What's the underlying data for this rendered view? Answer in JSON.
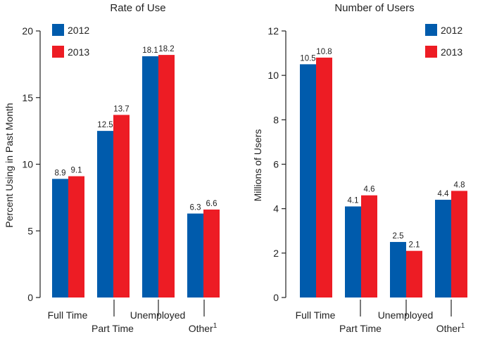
{
  "colors": {
    "s2012": "#005bac",
    "s2013": "#ed1c24"
  },
  "chart_data": [
    {
      "type": "bar",
      "title": "Rate of Use",
      "ylabel": "Percent Using in Past Month",
      "xlabel": "",
      "ylim": [
        0,
        20
      ],
      "yticks": [
        0,
        5,
        10,
        15,
        20
      ],
      "ytick_labels": [
        "0",
        "5",
        "10",
        "15",
        "20"
      ],
      "categories": [
        "Full Time",
        "Part Time",
        "Unemployed",
        "Other"
      ],
      "category_superscripts": [
        "",
        "",
        "",
        "1"
      ],
      "series": [
        {
          "name": "2012",
          "values": [
            8.9,
            12.5,
            18.1,
            6.3
          ],
          "labels": [
            "8.9",
            "12.5",
            "18.1",
            "6.3"
          ]
        },
        {
          "name": "2013",
          "values": [
            9.1,
            13.7,
            18.2,
            6.6
          ],
          "labels": [
            "9.1",
            "13.7",
            "18.2",
            "6.6"
          ]
        }
      ],
      "legend": "top-left"
    },
    {
      "type": "bar",
      "title": "Number of Users",
      "ylabel": "Millions of Users",
      "xlabel": "",
      "ylim": [
        0,
        12
      ],
      "yticks": [
        0,
        2,
        4,
        6,
        8,
        10,
        12
      ],
      "ytick_labels": [
        "0",
        "2",
        "4",
        "6",
        "8",
        "10",
        "12"
      ],
      "categories": [
        "Full Time",
        "Part Time",
        "Unemployed",
        "Other"
      ],
      "category_superscripts": [
        "",
        "",
        "",
        "1"
      ],
      "series": [
        {
          "name": "2012",
          "values": [
            10.5,
            4.1,
            2.5,
            4.4
          ],
          "labels": [
            "10.5",
            "4.1",
            "2.5",
            "4.4"
          ]
        },
        {
          "name": "2013",
          "values": [
            10.8,
            4.6,
            2.1,
            4.8
          ],
          "labels": [
            "10.8",
            "4.6",
            "2.1",
            "4.8"
          ]
        }
      ],
      "legend": "top-right"
    }
  ]
}
